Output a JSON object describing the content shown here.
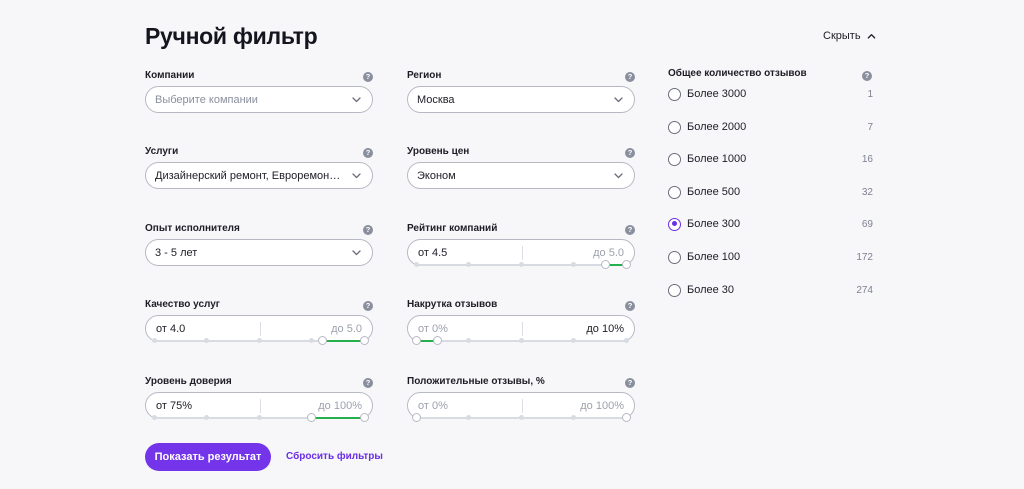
{
  "page": {
    "title": "Ручной фильтр",
    "hide_label": "Скрыть"
  },
  "help_glyph": "?",
  "filters": {
    "companies": {
      "label": "Компании",
      "placeholder": "Выберите компании"
    },
    "region": {
      "label": "Регион",
      "value": "Москва"
    },
    "services": {
      "label": "Услуги",
      "value": "Дизайнерский ремонт, Евроремонт, Капитальный ремонт"
    },
    "price_level": {
      "label": "Уровень цен",
      "value": "Эконом"
    },
    "experience": {
      "label": "Опыт исполнителя",
      "value": "3 - 5 лет"
    },
    "company_rating": {
      "label": "Рейтинг компаний",
      "from": "от 4.5",
      "to": "до 5.0",
      "min": 0,
      "max": 5,
      "low": 4.5,
      "high": 5.0
    },
    "service_quality": {
      "label": "Качество услуг",
      "from": "от 4.0",
      "to": "до 5.0",
      "min": 0,
      "max": 5,
      "low": 4.0,
      "high": 5.0
    },
    "review_boost": {
      "label": "Накрутка отзывов",
      "from": "от 0%",
      "to": "до 10%",
      "min": 0,
      "max": 100,
      "low": 0,
      "high": 10
    },
    "trust_level": {
      "label": "Уровень доверия",
      "from": "от 75%",
      "to": "до 100%",
      "min": 0,
      "max": 100,
      "low": 75,
      "high": 100
    },
    "positive_reviews": {
      "label": "Положительные отзывы, %",
      "from": "от 0%",
      "to": "до 100%",
      "min": 0,
      "max": 100,
      "low": 0,
      "high": 100
    }
  },
  "review_count": {
    "label": "Общее количество отзывов",
    "selected_index": 4,
    "options": [
      {
        "label": "Более 3000",
        "count": "1"
      },
      {
        "label": "Более 2000",
        "count": "7"
      },
      {
        "label": "Более 1000",
        "count": "16"
      },
      {
        "label": "Более 500",
        "count": "32"
      },
      {
        "label": "Более 300",
        "count": "69"
      },
      {
        "label": "Более 100",
        "count": "172"
      },
      {
        "label": "Более 30",
        "count": "274"
      }
    ]
  },
  "actions": {
    "show_results": "Показать результат",
    "reset": "Сбросить фильтры"
  },
  "colors": {
    "accent": "#6a2ee8",
    "button": "#7434ea",
    "range_fill": "#26b04d",
    "border": "#b6b9c4"
  }
}
